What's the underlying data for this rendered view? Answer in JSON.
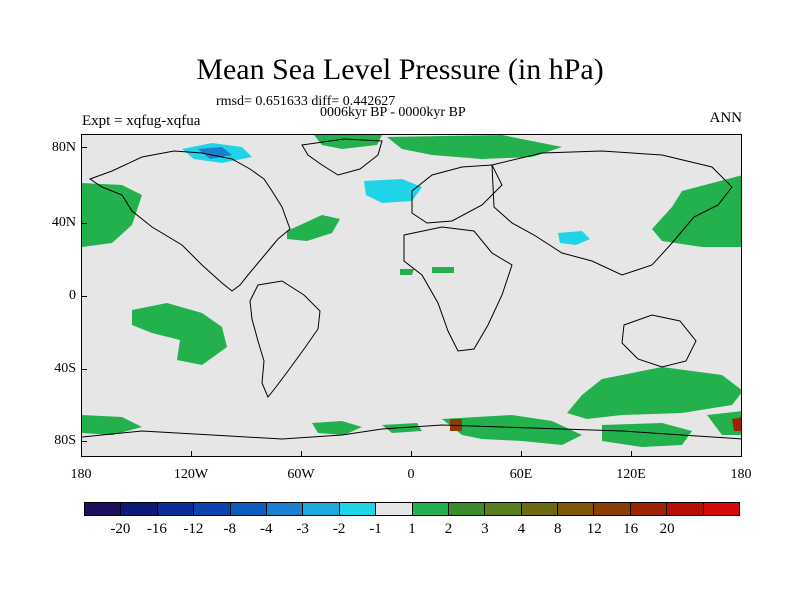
{
  "title": "Mean Sea Level Pressure (in hPa)",
  "stats": "rmsd= 0.651633 diff= 0.442627",
  "period": "0006kyr BP - 0000kyr BP",
  "experiment": "Expt = xqfug-xqfua",
  "season": "ANN",
  "map": {
    "projection": "cylindrical equidistant",
    "lat_labels": [
      "80N",
      "40N",
      "0",
      "40S",
      "80S"
    ],
    "lon_labels": [
      "180",
      "120W",
      "60W",
      "0",
      "60E",
      "120E",
      "180"
    ],
    "background_color": "#e6e6e6"
  },
  "legend": {
    "colors": [
      "#1c0f5e",
      "#0a1a7a",
      "#0b2d96",
      "#0b44ad",
      "#0d5cbf",
      "#1a7fd0",
      "#1ea8e0",
      "#20d4e8",
      "#e6e6e6",
      "#22b14c",
      "#3d8c2a",
      "#5a7f1d",
      "#6b6a10",
      "#7c5808",
      "#8b3d06",
      "#9c2208",
      "#b81006",
      "#d40a0a"
    ],
    "labels": [
      "-20",
      "-16",
      "-12",
      "-8",
      "-4",
      "-3",
      "-2",
      "-1",
      "1",
      "2",
      "3",
      "4",
      "8",
      "12",
      "16",
      "20"
    ]
  }
}
